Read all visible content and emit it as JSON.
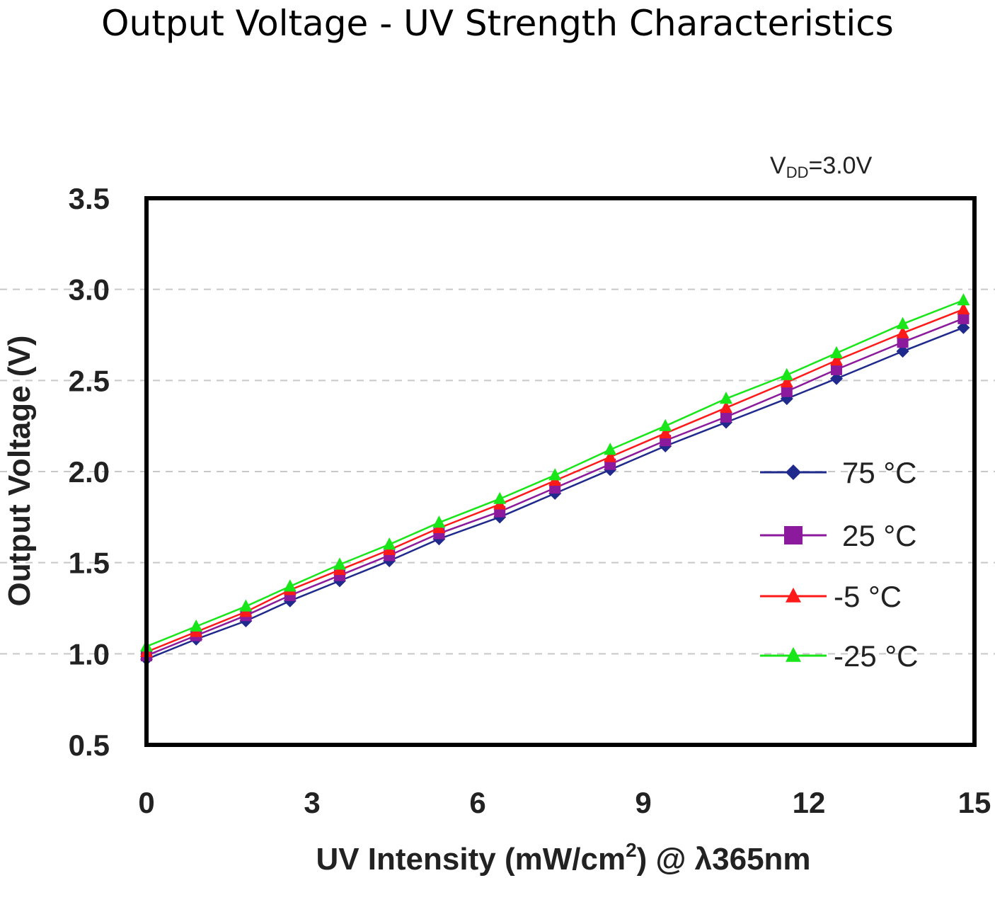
{
  "page_title": "Output Voltage - UV Strength Characteristics",
  "chart_data": {
    "type": "line",
    "condition_label": {
      "main": "V",
      "sub": "DD",
      "rest": "=3.0V"
    },
    "xlabel": {
      "pre": "UV Intensity (mW/cm",
      "sup": "2",
      "post": ") @ λ365nm"
    },
    "ylabel": "Output Voltage (V)",
    "xlim": [
      0,
      15
    ],
    "ylim": [
      0.5,
      3.5
    ],
    "x_ticks": [
      "0",
      "3",
      "6",
      "9",
      "12",
      "15"
    ],
    "y_ticks": [
      "0.5",
      "1.0",
      "1.5",
      "2.0",
      "2.5",
      "3.0",
      "3.5"
    ],
    "grid": "horizontal-dashed",
    "legend_position": "right",
    "x": [
      0,
      0.9,
      1.8,
      2.6,
      3.5,
      4.4,
      5.3,
      6.4,
      7.4,
      8.4,
      9.4,
      10.5,
      11.6,
      12.5,
      13.7,
      14.8
    ],
    "series": [
      {
        "name": "75 °C",
        "color": "#1f2a8c",
        "marker": "diamond",
        "values": [
          0.97,
          1.08,
          1.18,
          1.29,
          1.4,
          1.51,
          1.63,
          1.75,
          1.88,
          2.01,
          2.14,
          2.27,
          2.4,
          2.51,
          2.66,
          2.79
        ]
      },
      {
        "name": "25 °C",
        "color": "#8b1a9c",
        "marker": "square",
        "values": [
          0.99,
          1.1,
          1.21,
          1.32,
          1.43,
          1.54,
          1.66,
          1.78,
          1.91,
          2.04,
          2.17,
          2.3,
          2.44,
          2.56,
          2.71,
          2.84
        ]
      },
      {
        "name": "-5 °C",
        "color": "#ff1a1a",
        "marker": "triangle",
        "values": [
          1.01,
          1.12,
          1.23,
          1.35,
          1.46,
          1.57,
          1.69,
          1.82,
          1.95,
          2.08,
          2.21,
          2.35,
          2.49,
          2.61,
          2.76,
          2.89
        ]
      },
      {
        "name": "-25 °C",
        "color": "#19e619",
        "marker": "triangle",
        "values": [
          1.04,
          1.15,
          1.26,
          1.37,
          1.49,
          1.6,
          1.72,
          1.85,
          1.98,
          2.12,
          2.25,
          2.4,
          2.53,
          2.65,
          2.81,
          2.94
        ]
      }
    ]
  }
}
